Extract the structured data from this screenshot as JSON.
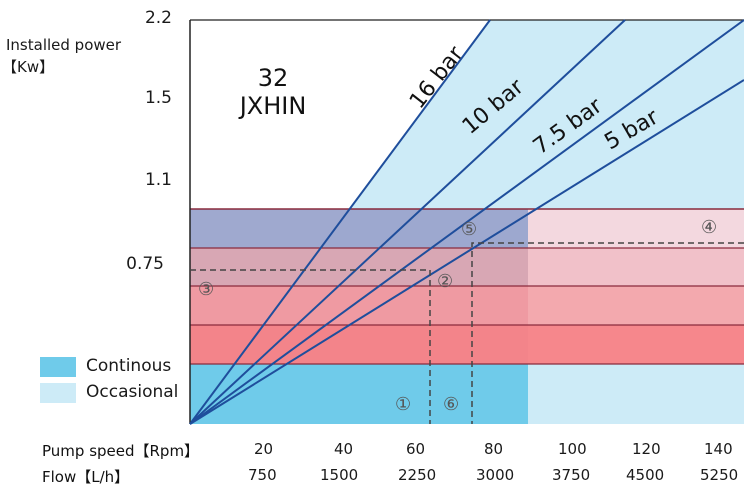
{
  "chart_data": {
    "type": "line",
    "title": "32\nJXHIN",
    "title_line1": "32",
    "title_line2": "JXHIN",
    "ylabel_line1": "Installed power",
    "ylabel_line2": "【Kw】",
    "y_ticks": [
      "2.2",
      "1.5",
      "1.1",
      "0.75"
    ],
    "x_row1_label": "Pump speed【Rpm】",
    "x_row1_ticks": [
      "20",
      "40",
      "60",
      "80",
      "100",
      "120",
      "140"
    ],
    "x_row2_label": "Flow【L/h】",
    "x_row2_ticks": [
      "750",
      "1500",
      "2250",
      "3000",
      "3750",
      "4500",
      "5250"
    ],
    "series": [
      {
        "name": "16 bar",
        "x": [
          0,
          88
        ],
        "y_frac": [
          0,
          1.0
        ]
      },
      {
        "name": "10 bar",
        "x": [
          0,
          120
        ],
        "y_frac": [
          0,
          1.0
        ]
      },
      {
        "name": "7.5 bar",
        "x": [
          0,
          140
        ],
        "y_frac": [
          0,
          1.0
        ]
      },
      {
        "name": "5 bar",
        "x": [
          0,
          140
        ],
        "y_frac": [
          0,
          0.85
        ]
      }
    ],
    "legend": [
      {
        "label": "Continous",
        "color": "#6fcbea"
      },
      {
        "label": "Occasional",
        "color": "#cdebf7"
      }
    ],
    "markers": [
      "①",
      "②",
      "③",
      "④",
      "⑤",
      "⑥"
    ],
    "colors": {
      "occasional": "#cdebf7",
      "continuous": "#6fcbea",
      "band_red": "#f48a8e",
      "band_pink": "#f0bcc6",
      "band_blue": "#9aa4cc",
      "line": "#1f4e9c",
      "grid": "#8a2b3d",
      "dash": "#444444"
    }
  }
}
